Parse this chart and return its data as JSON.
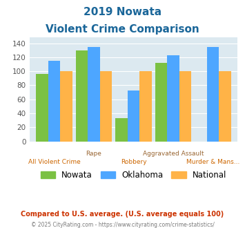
{
  "title_line1": "2019 Nowata",
  "title_line2": "Violent Crime Comparison",
  "categories": [
    "All Violent Crime",
    "Rape",
    "Robbery",
    "Aggravated Assault",
    "Murder & Mans..."
  ],
  "cat_top": [
    "",
    "Rape",
    "",
    "Aggravated Assault",
    ""
  ],
  "cat_bottom": [
    "All Violent Crime",
    "",
    "Robbery",
    "",
    "Murder & Mans..."
  ],
  "nowata": [
    96,
    130,
    33,
    112,
    0
  ],
  "oklahoma": [
    115,
    135,
    73,
    123,
    135
  ],
  "national": [
    100,
    100,
    100,
    100,
    100
  ],
  "nowata_color": "#7bc143",
  "oklahoma_color": "#4da6ff",
  "national_color": "#ffb347",
  "bg_color": "#dce9f0",
  "title_color": "#1a6699",
  "top_label_color": "#996633",
  "bot_label_color": "#cc6600",
  "ylabel_values": [
    0,
    20,
    40,
    60,
    80,
    100,
    120,
    140
  ],
  "ylim": [
    0,
    148
  ],
  "legend_labels": [
    "Nowata",
    "Oklahoma",
    "National"
  ],
  "footnote1": "Compared to U.S. average. (U.S. average equals 100)",
  "footnote2": "© 2025 CityRating.com - https://www.cityrating.com/crime-statistics/",
  "footnote1_color": "#cc3300",
  "footnote2_color": "#7a7a7a"
}
